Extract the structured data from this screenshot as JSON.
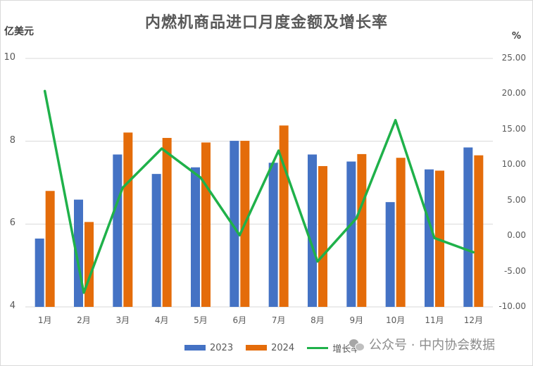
{
  "chart_data": {
    "type": "bar",
    "title": "内燃机商品进口月度金额及增长率",
    "left_axis_unit": "亿美元",
    "right_axis_unit": "%",
    "categories": [
      "1月",
      "2月",
      "3月",
      "4月",
      "5月",
      "6月",
      "7月",
      "8月",
      "9月",
      "10月",
      "11月",
      "12月"
    ],
    "series": [
      {
        "name": "2023",
        "type": "bar",
        "axis": "left",
        "color": "#4472c4",
        "values": [
          5.65,
          6.59,
          7.68,
          7.21,
          7.37,
          8.01,
          7.48,
          7.68,
          7.51,
          6.53,
          7.32,
          7.85
        ]
      },
      {
        "name": "2024",
        "type": "bar",
        "axis": "left",
        "color": "#e46c0a",
        "values": [
          6.8,
          6.05,
          8.21,
          8.08,
          7.97,
          8.01,
          8.38,
          7.4,
          7.69,
          7.6,
          7.29,
          7.66
        ]
      },
      {
        "name": "增长率",
        "type": "line",
        "axis": "right",
        "color": "#1fb14a",
        "values": [
          20.4,
          -8.0,
          6.8,
          12.3,
          8.2,
          0.1,
          12.0,
          -3.6,
          2.5,
          16.3,
          -0.3,
          -2.3
        ]
      }
    ],
    "left_axis": {
      "min": 4,
      "max": 10,
      "ticks": [
        "4",
        "6",
        "8",
        "10"
      ]
    },
    "right_axis": {
      "min": -10,
      "max": 25,
      "ticks": [
        "-10.00",
        "-5.00",
        "0.00",
        "5.00",
        "10.00",
        "15.00",
        "20.00",
        "25.00"
      ]
    },
    "grid": true,
    "legend_position": "bottom"
  },
  "watermark": "公众号 · 中内协会数据"
}
